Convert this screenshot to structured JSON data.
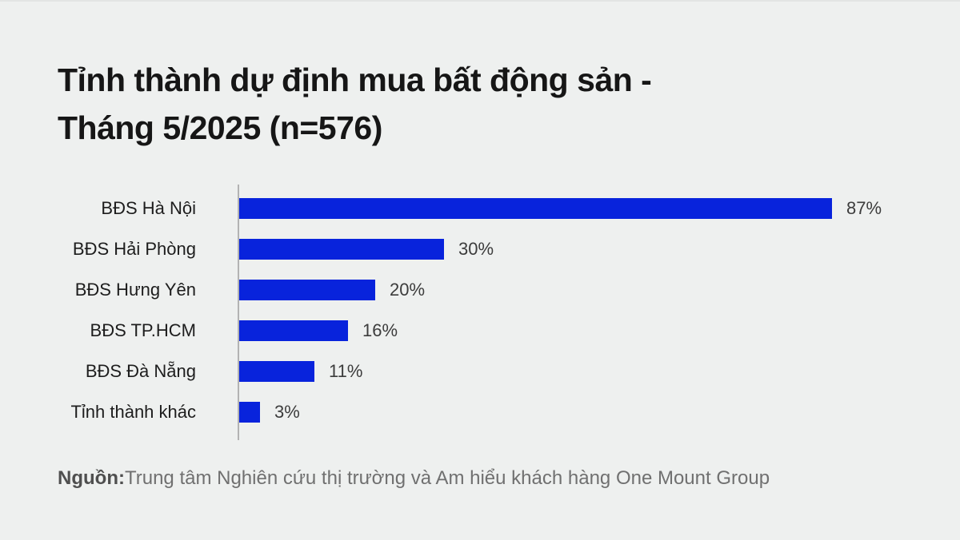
{
  "page": {
    "background_color": "#eef0ef",
    "top_border_color": "#e3e5e4"
  },
  "title": {
    "line1": "Tỉnh thành dự định mua bất động sản -",
    "line2": "Tháng 5/2025 (n=576)"
  },
  "source": {
    "label": "Nguồn:",
    "text": "Trung tâm Nghiên cứu thị trường và Am hiểu khách hàng One Mount Group"
  },
  "colors": {
    "bar": "#0823dc",
    "axis_line": "#b3b3b3",
    "title_text": "#161616",
    "category_text": "#1d1d1d",
    "value_text": "#3c3c3c",
    "source_label_text": "#4f4f4f",
    "source_text": "#707070"
  },
  "chart_data": {
    "type": "bar",
    "orientation": "horizontal",
    "title": "Tỉnh thành dự định mua bất động sản - Tháng 5/2025 (n=576)",
    "sample_size": "n=576",
    "categories": [
      "BĐS Hà Nội",
      "BĐS Hải Phòng",
      "BĐS Hưng Yên",
      "BĐS TP.HCM",
      "BĐS Đà Nẵng",
      "Tỉnh thành khác"
    ],
    "values": [
      87,
      30,
      20,
      16,
      11,
      3
    ],
    "value_labels": [
      "87%",
      "30%",
      "20%",
      "16%",
      "11%",
      "3%"
    ],
    "unit": "%",
    "xlim": [
      0,
      100
    ],
    "grid": false,
    "legend": false,
    "bar_color": "#0823dc"
  }
}
